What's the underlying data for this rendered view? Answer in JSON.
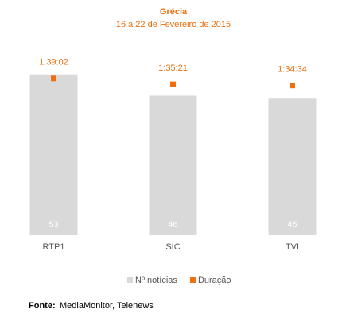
{
  "chart_data": {
    "type": "bar",
    "title": "Grécia",
    "subtitle": "16 a 22 de Fevereiro de 2015",
    "categories": [
      "RTP1",
      "SIC",
      "TVI"
    ],
    "series": [
      {
        "name": "Nº notícias",
        "color": "#d9d9d9",
        "values": [
          53,
          46,
          45
        ]
      },
      {
        "name": "Duração",
        "color": "#ed6f0f",
        "axis": "y2",
        "values": [
          5942,
          5721,
          5674
        ],
        "value_labels": [
          "1:39:02",
          "1:35:21",
          "1:34:34"
        ]
      }
    ],
    "ylim": [
      0,
      60
    ],
    "y2lim": [
      0,
      6900
    ],
    "grid": false,
    "source": {
      "label": "Fonte:",
      "text": "MediaMonitor, Telenews"
    }
  }
}
